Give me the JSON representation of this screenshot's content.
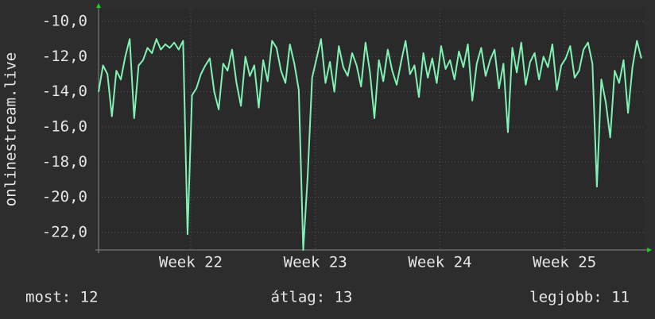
{
  "chart_data": {
    "type": "line",
    "y_label": "onlinestream.live",
    "series": [
      {
        "name": "onlinestream.live",
        "color": "#80f2b4",
        "values": [
          -14,
          -12.5,
          -13,
          -15.4,
          -12.8,
          -13.3,
          -12,
          -11,
          -15.5,
          -12.5,
          -12.2,
          -11.5,
          -11.8,
          -11,
          -11.6,
          -11.3,
          -11.5,
          -11.2,
          -11.6,
          -11.1,
          -22.1,
          -14.2,
          -13.8,
          -13,
          -12.5,
          -12.1,
          -14,
          -15,
          -12.4,
          -12.8,
          -11.6,
          -13.5,
          -14.8,
          -12,
          -13.1,
          -12.5,
          -14.9,
          -12.2,
          -13.4,
          -11.1,
          -11.5,
          -12.8,
          -13.5,
          -11.3,
          -12.4,
          -13.9,
          -23,
          -18.8,
          -13.2,
          -12.1,
          -11,
          -13.5,
          -12.3,
          -14,
          -11.4,
          -12.6,
          -13.1,
          -11.8,
          -12.5,
          -13.7,
          -11.2,
          -12.9,
          -15.5,
          -12.2,
          -13.4,
          -11.6,
          -12.8,
          -13.6,
          -12.3,
          -11.1,
          -13,
          -12.5,
          -14.3,
          -11.8,
          -13.2,
          -12.1,
          -13.5,
          -11.4,
          -12.7,
          -12.2,
          -13.3,
          -11.7,
          -12.6,
          -11.3,
          -14.5,
          -12.4,
          -11.5,
          -13.1,
          -12.2,
          -11.6,
          -13.8,
          -12.4,
          -16.3,
          -11.5,
          -12.9,
          -11.2,
          -13.6,
          -12.3,
          -11.8,
          -13.3,
          -12,
          -12.6,
          -11.3,
          -13.9,
          -12.5,
          -12.1,
          -11.4,
          -13.2,
          -12.8,
          -11.6,
          -11.2,
          -12.4,
          -19.4,
          -13.3,
          -14.6,
          -16.6,
          -12.8,
          -13.5,
          -12.2,
          -15.2,
          -12.6,
          -11.1,
          -12.1
        ]
      }
    ],
    "x": [
      0,
      0.25,
      0.5,
      0.75,
      1,
      1.25,
      1.5,
      1.75,
      2,
      2.25,
      2.5,
      2.75,
      3,
      3.25,
      3.5,
      3.75,
      4,
      4.25,
      4.5,
      4.75,
      5,
      5.25,
      5.5,
      5.75,
      6,
      6.25,
      6.5,
      6.75,
      7,
      7.25,
      7.5,
      7.75,
      8,
      8.25,
      8.5,
      8.75,
      9,
      9.25,
      9.5,
      9.75,
      10,
      10.25,
      10.5,
      10.75,
      11,
      11.25,
      11.5,
      11.75,
      12,
      12.25,
      12.5,
      12.75,
      13,
      13.25,
      13.5,
      13.75,
      14,
      14.25,
      14.5,
      14.75,
      15,
      15.25,
      15.5,
      15.75,
      16,
      16.25,
      16.5,
      16.75,
      17,
      17.25,
      17.5,
      17.75,
      18,
      18.25,
      18.5,
      18.75,
      19,
      19.25,
      19.5,
      19.75,
      20,
      20.25,
      20.5,
      20.75,
      21,
      21.25,
      21.5,
      21.75,
      22,
      22.25,
      22.5,
      22.75,
      23,
      23.25,
      23.5,
      23.75,
      24,
      24.25,
      24.5,
      24.75,
      25,
      25.25,
      25.5,
      25.75,
      26,
      26.25,
      26.5,
      26.75,
      27,
      27.25,
      27.5,
      27.75,
      28,
      28.25,
      28.5,
      28.75,
      29,
      29.25,
      29.5,
      29.75,
      30,
      30.25,
      30.5
    ],
    "xlim": [
      0,
      30.64
    ],
    "xticks": [
      {
        "value": 5.18,
        "label": "Week 22"
      },
      {
        "value": 12.18,
        "label": "Week 23"
      },
      {
        "value": 19.18,
        "label": "Week 24"
      },
      {
        "value": 26.18,
        "label": "Week 25"
      }
    ],
    "ylim": [
      -23,
      -9.32
    ],
    "yticks": [
      {
        "value": -10,
        "label": "-10,0"
      },
      {
        "value": -12,
        "label": "-12,0"
      },
      {
        "value": -14,
        "label": "-14,0"
      },
      {
        "value": -16,
        "label": "-16,0"
      },
      {
        "value": -18,
        "label": "-18,0"
      },
      {
        "value": -20,
        "label": "-20,0"
      },
      {
        "value": -22,
        "label": "-22,0"
      }
    ],
    "grid": true,
    "footer": [
      "most: 12",
      "átlag: 13",
      "legjobb: 11"
    ]
  }
}
